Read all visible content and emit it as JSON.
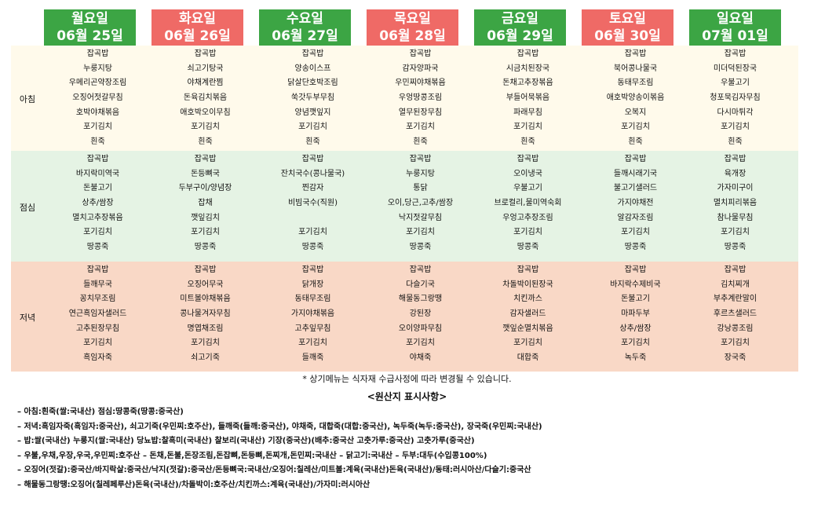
{
  "days": [
    {
      "name": "월요일",
      "date": "06월 25일",
      "color": "green"
    },
    {
      "name": "화요일",
      "date": "06월 26일",
      "color": "red"
    },
    {
      "name": "수요일",
      "date": "06월 27일",
      "color": "green"
    },
    {
      "name": "목요일",
      "date": "06월 28일",
      "color": "red"
    },
    {
      "name": "금요일",
      "date": "06월 29일",
      "color": "green"
    },
    {
      "name": "토요일",
      "date": "06월 30일",
      "color": "red"
    },
    {
      "name": "일요일",
      "date": "07월 01일",
      "color": "green"
    }
  ],
  "meals": [
    {
      "label": "아침",
      "key": "breakfast",
      "items": [
        [
          "잡곡밥",
          "누룽지탕",
          "우메리곤약장조림",
          "오징어젓갈무침",
          "호박야채볶음",
          "포기김치",
          "흰죽"
        ],
        [
          "잡곡밥",
          "쇠고기탕국",
          "야채계란찜",
          "돈육김치볶음",
          "애호박오이무침",
          "포기김치",
          "흰죽"
        ],
        [
          "잡곡밥",
          "양송이스프",
          "닭살단호박조림",
          "쑥갓두부무침",
          "양념깻잎지",
          "포기김치",
          "흰죽"
        ],
        [
          "잡곡밥",
          "감자양파국",
          "우민찌야채볶음",
          "우엉땅콩조림",
          "열무된장무침",
          "포기김치",
          "흰죽"
        ],
        [
          "잡곡밥",
          "시금치된장국",
          "돈채고추장볶음",
          "부들어묵볶음",
          "파래무침",
          "포기김치",
          "흰죽"
        ],
        [
          "잡곡밥",
          "북어콩나물국",
          "동태무조림",
          "애호박양송이볶음",
          "오복지",
          "포기김치",
          "흰죽"
        ],
        [
          "잡곡밥",
          "미더덕된장국",
          "우불고기",
          "청포묵김자무침",
          "다시마튀각",
          "포기김치",
          "흰죽"
        ]
      ]
    },
    {
      "label": "점심",
      "key": "lunch",
      "items": [
        [
          "잡곡밥",
          "바지락미역국",
          "돈불고기",
          "상추/쌈장",
          "멸치고추장볶음",
          "포기김치",
          "땅콩죽"
        ],
        [
          "잡곡밥",
          "돈등뼈국",
          "두부구이/양념장",
          "잡채",
          "깻잎김치",
          "포기김치",
          "땅콩죽"
        ],
        [
          "잡곡밥",
          "잔치국수(콩나물국)",
          "찐감자",
          "비빔국수(직원)",
          "",
          "포기김치",
          "땅콩죽"
        ],
        [
          "잡곡밥",
          "누룽지탕",
          "통닭",
          "오이,당근,고추/쌈장",
          "낙지젓갈무침",
          "포기김치",
          "땅콩죽"
        ],
        [
          "잡곡밥",
          "오이냉국",
          "우불고기",
          "브로컬리,물미역숙회",
          "우엉고추장조림",
          "포기김치",
          "땅콩죽"
        ],
        [
          "잡곡밥",
          "들깨시래기국",
          "불고기샐러드",
          "가지야채전",
          "알감자조림",
          "포기김치",
          "땅콩죽"
        ],
        [
          "잡곡밥",
          "육개장",
          "가자미구이",
          "멸치피리볶음",
          "참나물무침",
          "포기김치",
          "땅콩죽"
        ]
      ]
    },
    {
      "label": "저녁",
      "key": "dinner",
      "items": [
        [
          "잡곡밥",
          "들깨무국",
          "꽁치무조림",
          "연근흑임자샐러드",
          "고추된장무침",
          "포기김치",
          "흑임자죽"
        ],
        [
          "잡곡밥",
          "오징어무국",
          "미트볼야채볶음",
          "콩나물겨자무침",
          "명엽채조림",
          "포기김치",
          "쇠고기죽"
        ],
        [
          "잡곡밥",
          "닭개장",
          "동태무조림",
          "가지야채볶음",
          "고추잎무침",
          "포기김치",
          "들깨죽"
        ],
        [
          "잡곡밥",
          "다슬기국",
          "해물동그랑땡",
          "강된장",
          "오이양파무침",
          "포기김치",
          "야채죽"
        ],
        [
          "잡곡밥",
          "차돌박이된장국",
          "치킨까스",
          "감자샐러드",
          "깻잎순멸치볶음",
          "포기김치",
          "대합죽"
        ],
        [
          "잡곡밥",
          "바지락수제비국",
          "돈불고기",
          "마파두부",
          "상추/쌈장",
          "포기김치",
          "녹두죽"
        ],
        [
          "잡곡밥",
          "김치찌개",
          "부추계란말이",
          "후르츠샐러드",
          "강낭콩조림",
          "포기김치",
          "장국죽"
        ]
      ]
    }
  ],
  "notice": "* 상기메뉴는 식자재 수급사정에 따라 변경될 수 있습니다.",
  "notes_title": "<원산지 표시사항>",
  "notes": [
    "– 아침:흰죽(쌀:국내산) 점심:땅콩죽(땅콩:중국산)",
    "– 저녁:흑임자죽(흑임자:중국산), 쇠고기죽(우민찌:호주산), 들깨죽(들깨:중국산), 야채죽, 대합죽(대합:중국산), 녹두죽(녹두:중국산), 장국죽(우민찌:국내산)",
    "– 밥:쌀(국내산) 누룽지(쌀:국내산) 당뇨밥:찰흑미(국내산) 찰보리(국내산) 기장(중국산)(배추:중국산 고춧가루:중국산) 고춧가루(중국산)",
    "– 우불,우채,우장,우국,우민찌:호주산  – 돈채,돈불,돈장조림,돈잡뼈,돈등뼈,돈찌개,돈민찌:국내산  – 닭고기:국내산  – 두부:대두(수입콩100%)",
    "– 오징어(젓갈):중국산/바지락살:중국산/낙지(젓갈):중국산/돈등뼈국:국내산/오징어:칠레산/미트볼:계육(국내산)돈육(국내산)/동태:러시아산/다슬기:중국산",
    "– 해물동그랑땡:오징어(칠레페루산)돈육(국내산)/차돌박이:호주산/치킨까스:계육(국내산)/가자미:러시아산"
  ]
}
